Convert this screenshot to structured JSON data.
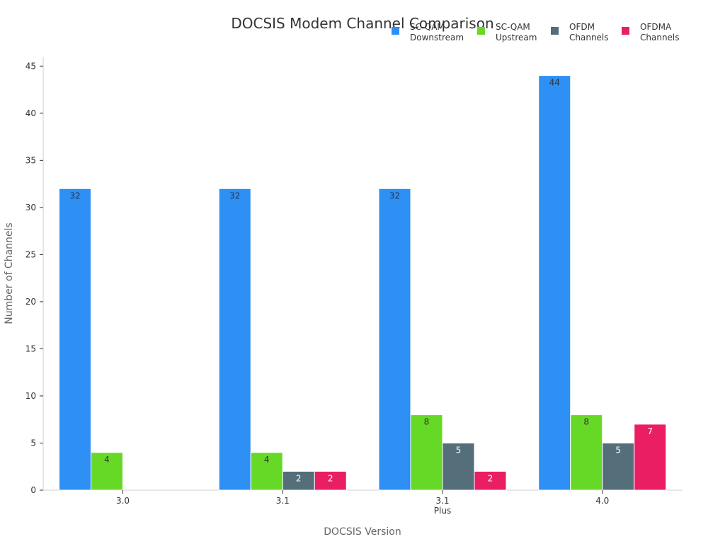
{
  "chart_data": {
    "type": "bar",
    "title": "DOCSIS Modem Channel Comparison",
    "xlabel": "DOCSIS Version",
    "ylabel": "Number of Channels",
    "categories": [
      [
        "3.0"
      ],
      [
        "3.1"
      ],
      [
        "3.1",
        "Plus"
      ],
      [
        "4.0"
      ]
    ],
    "ylim": [
      0,
      46
    ],
    "yticks": [
      0,
      5,
      10,
      15,
      20,
      25,
      30,
      35,
      40,
      45
    ],
    "grid": false,
    "legend_position": "top-right",
    "series": [
      {
        "name": [
          "SC-QAM",
          "Downstream"
        ],
        "color": "#2e8ff5",
        "label_color": "#333333",
        "values": [
          32,
          32,
          32,
          44
        ]
      },
      {
        "name": [
          "SC-QAM",
          "Upstream"
        ],
        "color": "#66d926",
        "label_color": "#333333",
        "values": [
          4,
          4,
          8,
          8
        ]
      },
      {
        "name": [
          "OFDM",
          "Channels"
        ],
        "color": "#546e7a",
        "label_color": "#ffffff",
        "values": [
          0,
          2,
          5,
          5
        ]
      },
      {
        "name": [
          "OFDMA",
          "Channels"
        ],
        "color": "#e91e63",
        "label_color": "#ffffff",
        "values": [
          0,
          2,
          2,
          7
        ]
      }
    ]
  }
}
